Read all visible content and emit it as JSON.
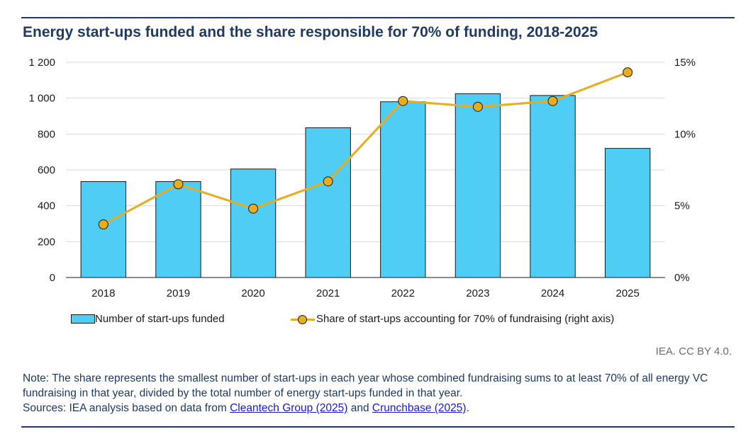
{
  "title": "Energy start-ups funded and the share responsible for 70% of funding, 2018-2025",
  "chart_data": {
    "type": "bar+line",
    "categories": [
      "2018",
      "2019",
      "2020",
      "2021",
      "2022",
      "2023",
      "2024",
      "2025"
    ],
    "series": [
      {
        "name": "Number of start-ups funded",
        "type": "bar",
        "axis": "left",
        "color": "#4fcdf5",
        "values": [
          535,
          535,
          605,
          835,
          980,
          1025,
          1015,
          720
        ]
      },
      {
        "name": "Share of start-ups accounting for 70% of fundraising (right axis)",
        "type": "line",
        "axis": "right",
        "color": "#e7ad1f",
        "values": [
          3.7,
          6.5,
          4.8,
          6.7,
          12.3,
          11.9,
          12.3,
          14.3
        ]
      }
    ],
    "left_axis": {
      "min": 0,
      "max": 1200,
      "ticks": [
        0,
        200,
        400,
        600,
        800,
        1000,
        1200
      ],
      "tick_labels": [
        "0",
        "200",
        "400",
        "600",
        "800",
        "1 000",
        "1 200"
      ]
    },
    "right_axis": {
      "min": 0,
      "max": 15,
      "ticks": [
        0,
        5,
        10,
        15
      ],
      "tick_labels": [
        "0%",
        "5%",
        "10%",
        "15%"
      ]
    },
    "grid": true
  },
  "legend": {
    "bar_label": "Number of start-ups funded",
    "line_label": "Share of start-ups accounting for 70% of fundraising (right axis)"
  },
  "credit": "IEA. CC BY 4.0.",
  "note": {
    "text": "Note: The share represents the smallest number of start-ups in each year whose combined fundraising sums to at least 70% of all energy VC fundraising in that year, divided by the total number of energy start-ups funded in that year.",
    "sources_prefix": "Sources: IEA analysis based on data from",
    "link1": "Cleantech Group (2025)",
    "conjunction": "and",
    "link2": "Crunchbase (2025)",
    "end": "."
  },
  "colors": {
    "title": "#1f3a63",
    "bar": "#4fcdf5",
    "line": "#e7ad1f",
    "grid": "#d9d9d9"
  }
}
